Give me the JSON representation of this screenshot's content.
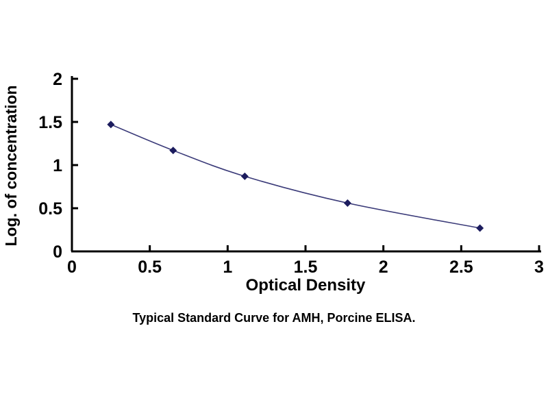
{
  "chart_data": {
    "type": "line",
    "title": "Typical Standard Curve for AMH, Porcine ELISA.",
    "xlabel": "Optical Density",
    "ylabel": "Log. of concentration",
    "x": [
      0.25,
      0.65,
      1.11,
      1.77,
      2.62
    ],
    "y": [
      1.47,
      1.17,
      0.87,
      0.56,
      0.27
    ],
    "xlim": [
      0,
      3
    ],
    "ylim": [
      0,
      2
    ],
    "xticks": [
      0,
      0.5,
      1,
      1.5,
      2,
      2.5,
      3
    ],
    "xtick_labels": [
      "0",
      "0.5",
      "1",
      "1.5",
      "2",
      "2.5",
      "3"
    ],
    "yticks": [
      0,
      0.5,
      1,
      1.5,
      2
    ],
    "ytick_labels": [
      "0",
      "0.5",
      "1",
      "1.5",
      "2"
    ],
    "grid": false,
    "legend": null,
    "line_color": "#3b3b79",
    "marker": "diamond",
    "marker_color": "#1c1c5e",
    "axis_color": "#000000",
    "background_color": "#ffffff"
  }
}
